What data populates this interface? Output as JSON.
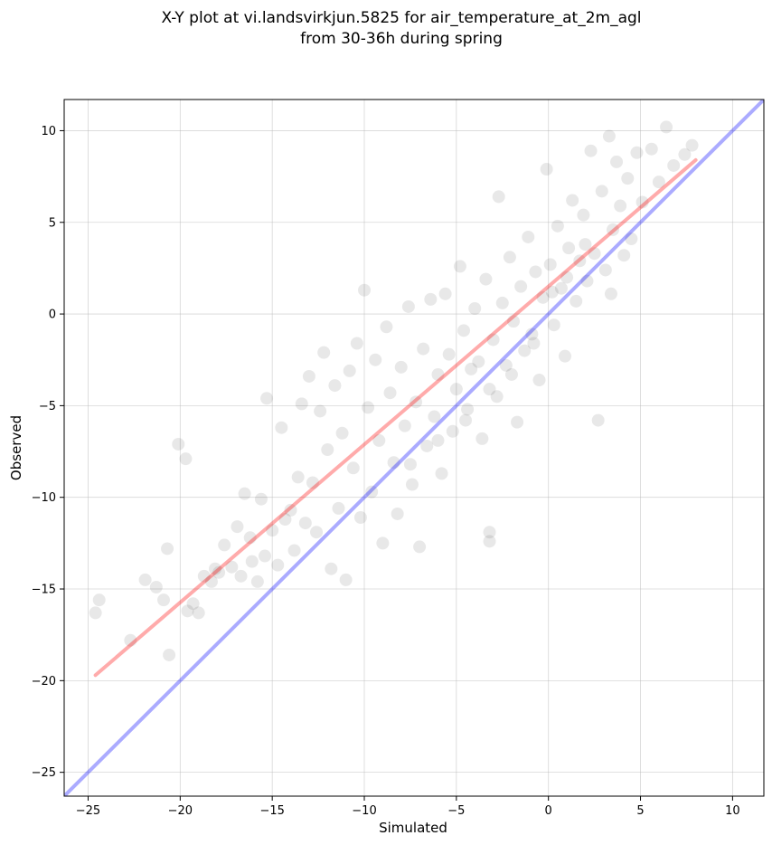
{
  "chart_data": {
    "type": "scatter",
    "title": {
      "line1": "X-Y plot at vi.landsvirkjun.5825 for air_temperature_at_2m_agl",
      "line2": "from 30-36h during spring"
    },
    "xlabel": "Simulated",
    "ylabel": "Observed",
    "xlim": [
      -26.3,
      11.7
    ],
    "ylim": [
      -26.3,
      11.7
    ],
    "xticks": [
      -25,
      -20,
      -15,
      -10,
      -5,
      0,
      5,
      10
    ],
    "yticks": [
      -25,
      -20,
      -15,
      -10,
      -5,
      0,
      5,
      10
    ],
    "grid": true,
    "lines": [
      {
        "kind": "identity",
        "color": "#0000ff",
        "opacity": 0.33,
        "x": [
          -26.3,
          11.7
        ],
        "y": [
          -26.3,
          11.7
        ]
      },
      {
        "kind": "fit",
        "color": "#ff0000",
        "opacity": 0.33,
        "x": [
          -24.6,
          8.0
        ],
        "y": [
          -19.7,
          8.4
        ]
      }
    ],
    "point_color": "#000000",
    "point_opacity": 0.09,
    "points": [
      [
        -24.6,
        -16.3
      ],
      [
        -24.4,
        -15.6
      ],
      [
        -22.7,
        -17.8
      ],
      [
        -21.9,
        -14.5
      ],
      [
        -21.3,
        -14.9
      ],
      [
        -20.9,
        -15.6
      ],
      [
        -20.7,
        -12.8
      ],
      [
        -20.6,
        -18.6
      ],
      [
        -20.1,
        -7.1
      ],
      [
        -19.7,
        -7.9
      ],
      [
        -19.6,
        -16.2
      ],
      [
        -19.3,
        -15.8
      ],
      [
        -19.0,
        -16.3
      ],
      [
        -18.7,
        -14.3
      ],
      [
        -18.3,
        -14.6
      ],
      [
        -18.1,
        -13.9
      ],
      [
        -17.9,
        -14.1
      ],
      [
        -17.6,
        -12.6
      ],
      [
        -17.2,
        -13.8
      ],
      [
        -16.9,
        -11.6
      ],
      [
        -16.7,
        -14.3
      ],
      [
        -16.5,
        -9.8
      ],
      [
        -16.2,
        -12.2
      ],
      [
        -16.1,
        -13.5
      ],
      [
        -15.8,
        -14.6
      ],
      [
        -15.6,
        -10.1
      ],
      [
        -15.4,
        -13.2
      ],
      [
        -15.3,
        -4.6
      ],
      [
        -15.0,
        -11.8
      ],
      [
        -14.7,
        -13.7
      ],
      [
        -14.5,
        -6.2
      ],
      [
        -14.3,
        -11.2
      ],
      [
        -14.0,
        -10.7
      ],
      [
        -13.8,
        -12.9
      ],
      [
        -13.6,
        -8.9
      ],
      [
        -13.4,
        -4.9
      ],
      [
        -13.2,
        -11.4
      ],
      [
        -13.0,
        -3.4
      ],
      [
        -12.8,
        -9.2
      ],
      [
        -12.6,
        -11.9
      ],
      [
        -12.4,
        -5.3
      ],
      [
        -12.2,
        -2.1
      ],
      [
        -12.0,
        -7.4
      ],
      [
        -11.8,
        -13.9
      ],
      [
        -11.6,
        -3.9
      ],
      [
        -11.4,
        -10.6
      ],
      [
        -11.2,
        -6.5
      ],
      [
        -11.0,
        -14.5
      ],
      [
        -10.8,
        -3.1
      ],
      [
        -10.6,
        -8.4
      ],
      [
        -10.4,
        -1.6
      ],
      [
        -10.2,
        -11.1
      ],
      [
        -10.0,
        1.3
      ],
      [
        -9.8,
        -5.1
      ],
      [
        -9.6,
        -9.7
      ],
      [
        -9.4,
        -2.5
      ],
      [
        -9.2,
        -6.9
      ],
      [
        -9.0,
        -12.5
      ],
      [
        -8.8,
        -0.7
      ],
      [
        -8.6,
        -4.3
      ],
      [
        -8.4,
        -8.1
      ],
      [
        -8.2,
        -10.9
      ],
      [
        -8.0,
        -2.9
      ],
      [
        -7.8,
        -6.1
      ],
      [
        -7.6,
        0.4
      ],
      [
        -7.4,
        -9.3
      ],
      [
        -7.2,
        -4.8
      ],
      [
        -7.0,
        -12.7
      ],
      [
        -6.8,
        -1.9
      ],
      [
        -6.6,
        -7.2
      ],
      [
        -6.4,
        0.8
      ],
      [
        -6.2,
        -5.6
      ],
      [
        -6.0,
        -3.3
      ],
      [
        -5.8,
        -8.7
      ],
      [
        -5.6,
        1.1
      ],
      [
        -5.4,
        -2.2
      ],
      [
        -5.2,
        -6.4
      ],
      [
        -5.0,
        -4.1
      ],
      [
        -4.8,
        2.6
      ],
      [
        -4.6,
        -0.9
      ],
      [
        -4.4,
        -5.2
      ],
      [
        -4.2,
        -3.0
      ],
      [
        -4.0,
        0.3
      ],
      [
        -3.8,
        -2.6
      ],
      [
        -3.6,
        -6.8
      ],
      [
        -3.4,
        1.9
      ],
      [
        -3.2,
        -12.4
      ],
      [
        -3.2,
        -11.9
      ],
      [
        -3.0,
        -1.4
      ],
      [
        -2.8,
        -4.5
      ],
      [
        -2.7,
        6.4
      ],
      [
        -2.5,
        0.6
      ],
      [
        -2.3,
        -2.8
      ],
      [
        -2.1,
        3.1
      ],
      [
        -1.9,
        -0.4
      ],
      [
        -1.7,
        -5.9
      ],
      [
        -1.5,
        1.5
      ],
      [
        -1.3,
        -2.0
      ],
      [
        -1.1,
        4.2
      ],
      [
        -0.9,
        -1.1
      ],
      [
        -0.7,
        2.3
      ],
      [
        -0.5,
        -3.6
      ],
      [
        -0.3,
        0.9
      ],
      [
        -0.1,
        7.9
      ],
      [
        0.1,
        2.7
      ],
      [
        0.3,
        -0.6
      ],
      [
        0.5,
        4.8
      ],
      [
        0.7,
        1.4
      ],
      [
        0.9,
        -2.3
      ],
      [
        1.1,
        3.6
      ],
      [
        1.3,
        6.2
      ],
      [
        1.5,
        0.7
      ],
      [
        1.7,
        2.9
      ],
      [
        1.9,
        5.4
      ],
      [
        2.1,
        1.8
      ],
      [
        2.3,
        8.9
      ],
      [
        2.5,
        3.3
      ],
      [
        2.7,
        -5.8
      ],
      [
        2.9,
        6.7
      ],
      [
        3.1,
        2.4
      ],
      [
        3.3,
        9.7
      ],
      [
        3.4,
        1.1
      ],
      [
        3.5,
        4.6
      ],
      [
        3.7,
        8.3
      ],
      [
        3.9,
        5.9
      ],
      [
        4.1,
        3.2
      ],
      [
        4.3,
        7.4
      ],
      [
        4.5,
        4.1
      ],
      [
        4.8,
        8.8
      ],
      [
        5.1,
        6.1
      ],
      [
        5.6,
        9.0
      ],
      [
        6.0,
        7.2
      ],
      [
        6.4,
        10.2
      ],
      [
        6.8,
        8.1
      ],
      [
        7.4,
        8.7
      ],
      [
        7.8,
        9.2
      ],
      [
        -3.2,
        -4.1
      ],
      [
        -2.0,
        -3.3
      ],
      [
        -0.8,
        -1.6
      ],
      [
        0.2,
        1.2
      ],
      [
        1.0,
        2.0
      ],
      [
        2.0,
        3.8
      ],
      [
        -6.0,
        -6.9
      ],
      [
        -4.5,
        -5.8
      ],
      [
        -7.5,
        -8.2
      ]
    ]
  }
}
